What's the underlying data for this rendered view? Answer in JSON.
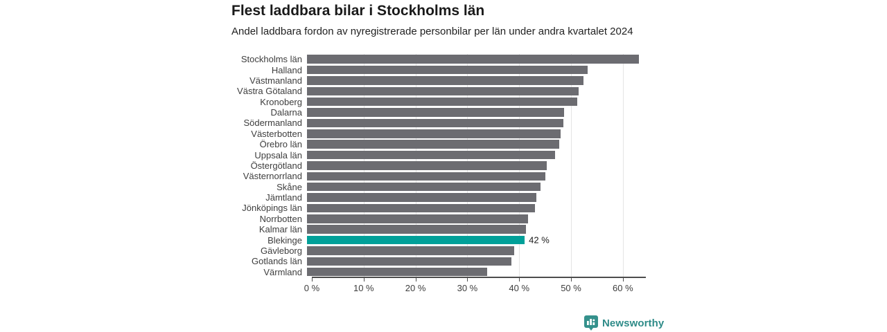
{
  "header": {
    "title": "Flest laddbara bilar i Stockholms län",
    "subtitle": "Andel laddbara fordon av nyregistrerade personbilar per län under andra kvartalet 2024"
  },
  "chart_data": {
    "type": "bar",
    "orientation": "horizontal",
    "title": "Flest laddbara bilar i Stockholms län",
    "subtitle": "Andel laddbara fordon av nyregistrerade personbilar per län under andra kvartalet 2024",
    "xlabel": "",
    "ylabel": "",
    "xlim": [
      0,
      64.3
    ],
    "grid": "vertical-light",
    "legend": "none",
    "x_ticks": [
      {
        "value": 0,
        "label": "0 %"
      },
      {
        "value": 10,
        "label": "10 %"
      },
      {
        "value": 20,
        "label": "20 %"
      },
      {
        "value": 30,
        "label": "30 %"
      },
      {
        "value": 40,
        "label": "40 %"
      },
      {
        "value": 50,
        "label": "50 %"
      },
      {
        "value": 60,
        "label": "60 %"
      }
    ],
    "series": [
      {
        "name": "Andel laddbara fordon av nyregistrerade personbilar (%)",
        "points": [
          {
            "category": "Stockholms län",
            "value": 64.0
          },
          {
            "category": "Halland",
            "value": 54.2
          },
          {
            "category": "Västmanland",
            "value": 53.4
          },
          {
            "category": "Västra Götaland",
            "value": 52.4
          },
          {
            "category": "Kronoberg",
            "value": 52.1
          },
          {
            "category": "Dalarna",
            "value": 49.6
          },
          {
            "category": "Södermanland",
            "value": 49.4
          },
          {
            "category": "Västerbotten",
            "value": 48.9
          },
          {
            "category": "Örebro län",
            "value": 48.6
          },
          {
            "category": "Uppsala län",
            "value": 47.9
          },
          {
            "category": "Östergötland",
            "value": 46.2
          },
          {
            "category": "Västernorrland",
            "value": 46.0
          },
          {
            "category": "Skåne",
            "value": 45.0
          },
          {
            "category": "Jämtland",
            "value": 44.3
          },
          {
            "category": "Jönköpings län",
            "value": 44.0
          },
          {
            "category": "Norrbotten",
            "value": 42.6
          },
          {
            "category": "Kalmar län",
            "value": 42.3
          },
          {
            "category": "Blekinge",
            "value": 42.0,
            "highlighted": true,
            "value_label": "42 %"
          },
          {
            "category": "Gävleborg",
            "value": 40.0
          },
          {
            "category": "Gotlands län",
            "value": 39.5
          },
          {
            "category": "Värmland",
            "value": 34.8
          }
        ]
      }
    ],
    "colors": {
      "bar": "#6c6c71",
      "highlight": "#00a099",
      "gridline": "#e4e4e4",
      "axis": "#4d4d4d",
      "label_text": "#3d3d3d",
      "value_label_text": "#1a1a1a"
    }
  },
  "footer": {
    "brand": "Newsworthy",
    "brand_color": "#2e8b88",
    "logo_color": "#35918c",
    "logo_icon": "bar-chart-badge-icon"
  }
}
